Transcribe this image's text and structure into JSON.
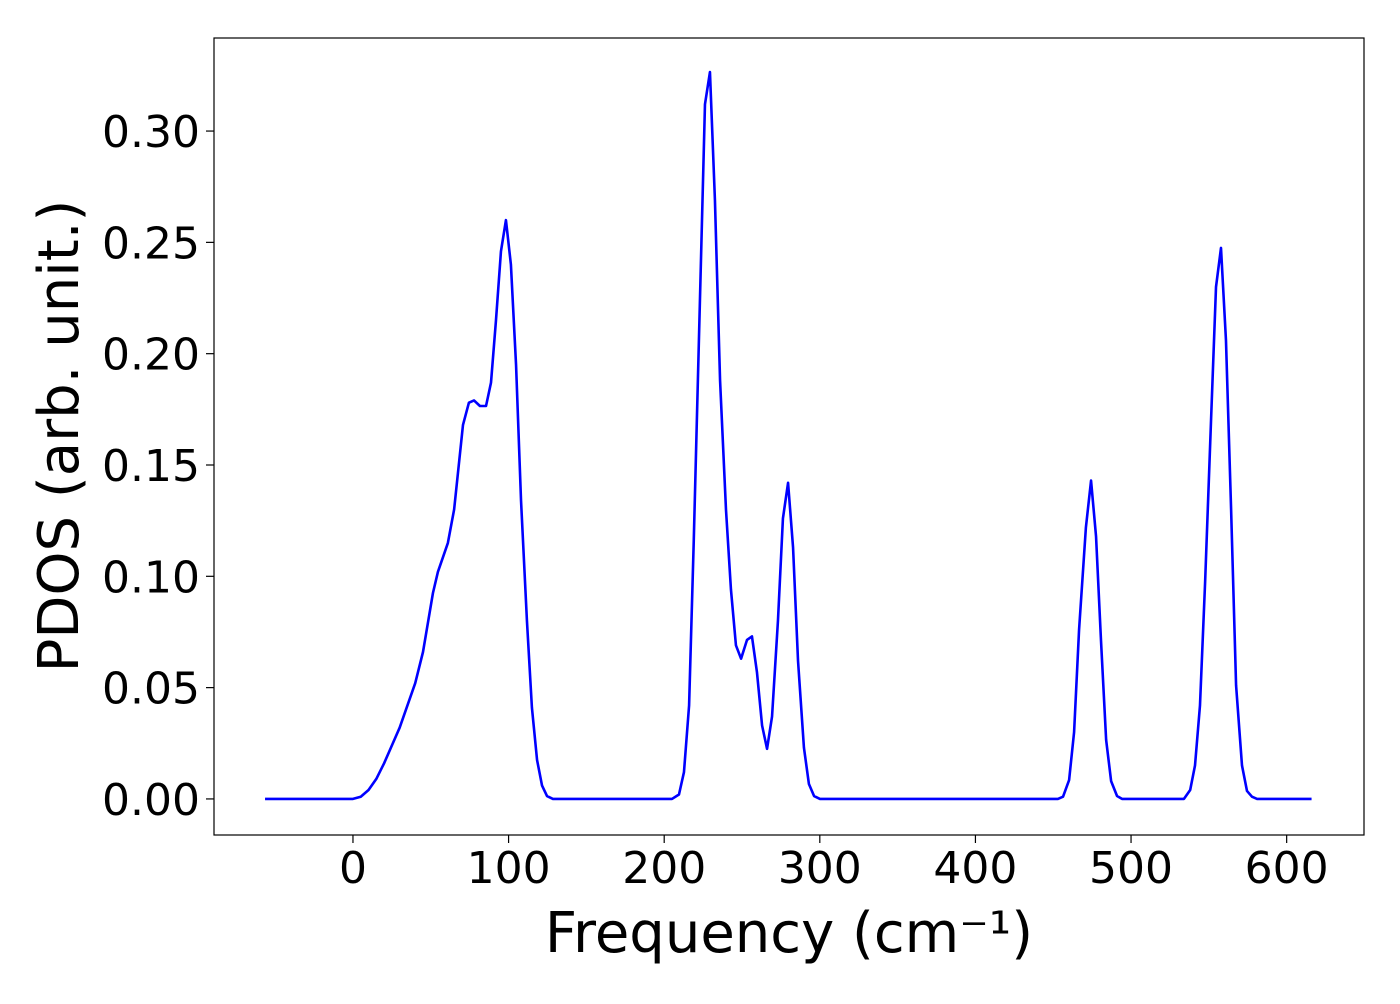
{
  "chart_data": {
    "type": "line",
    "xlabel": "Frequency (cm⁻¹)",
    "ylabel": "PDOS (arb. unit.)",
    "x": [
      -56.5,
      0,
      5,
      10,
      15,
      20,
      25,
      30,
      35,
      40,
      45,
      51.4,
      54.6,
      61,
      65,
      70.7,
      74.5,
      77.8,
      81.6,
      85.5,
      88.7,
      91.9,
      95.1,
      98.3,
      101.5,
      104.8,
      108,
      111.8,
      115,
      118.3,
      121.5,
      124.7,
      128.5,
      205,
      209.5,
      212.7,
      216,
      219,
      226.2,
      229.4,
      232.6,
      235.9,
      239.7,
      242.9,
      246.1,
      249.4,
      253.2,
      256.4,
      259.6,
      262.9,
      266.1,
      269.3,
      273.1,
      276.3,
      279.6,
      282.8,
      286,
      289.8,
      293,
      296.3,
      300.1,
      453,
      456.3,
      460.2,
      463.4,
      466.6,
      471,
      474.3,
      477.5,
      480.7,
      484,
      487.2,
      491,
      494.2,
      534,
      538,
      541.1,
      544.3,
      547.6,
      551.4,
      554.6,
      557.8,
      561,
      564.3,
      567.5,
      571.3,
      574.5,
      577.7,
      581,
      616
    ],
    "series": [
      {
        "name": "PDOS",
        "color": "#0000ff",
        "values": [
          0,
          0,
          0.001,
          0.004,
          0.009,
          0.016,
          0.024,
          0.032,
          0.042,
          0.052,
          0.066,
          0.0925,
          0.102,
          0.115,
          0.13,
          0.168,
          0.178,
          0.179,
          0.1765,
          0.1765,
          0.187,
          0.215,
          0.246,
          0.26,
          0.24,
          0.195,
          0.134,
          0.08,
          0.041,
          0.0175,
          0.006,
          0.0013,
          0,
          0,
          0.002,
          0.012,
          0.042,
          0.116,
          0.312,
          0.3265,
          0.269,
          0.188,
          0.13,
          0.094,
          0.069,
          0.063,
          0.0714,
          0.073,
          0.057,
          0.033,
          0.0225,
          0.037,
          0.08,
          0.126,
          0.142,
          0.113,
          0.062,
          0.023,
          0.0067,
          0.0013,
          0,
          0,
          0.001,
          0.0085,
          0.03,
          0.076,
          0.122,
          0.143,
          0.118,
          0.071,
          0.0265,
          0.008,
          0.0013,
          0,
          0,
          0.004,
          0.015,
          0.042,
          0.0975,
          0.17,
          0.23,
          0.2475,
          0.206,
          0.13,
          0.051,
          0.015,
          0.0036,
          0.001,
          0,
          0
        ]
      }
    ],
    "xlim": [
      -89.3,
      649.7
    ],
    "ylim": [
      -0.0162,
      0.3418
    ],
    "xticks": [
      0,
      100,
      200,
      300,
      400,
      500,
      600
    ],
    "yticks": [
      {
        "value": 0,
        "label": "0.00"
      },
      {
        "value": 0.05,
        "label": "0.05"
      },
      {
        "value": 0.1,
        "label": "0.10"
      },
      {
        "value": 0.15,
        "label": "0.15"
      },
      {
        "value": 0.2,
        "label": "0.20"
      },
      {
        "value": 0.25,
        "label": "0.25"
      },
      {
        "value": 0.3,
        "label": "0.30"
      }
    ],
    "grid": false
  }
}
